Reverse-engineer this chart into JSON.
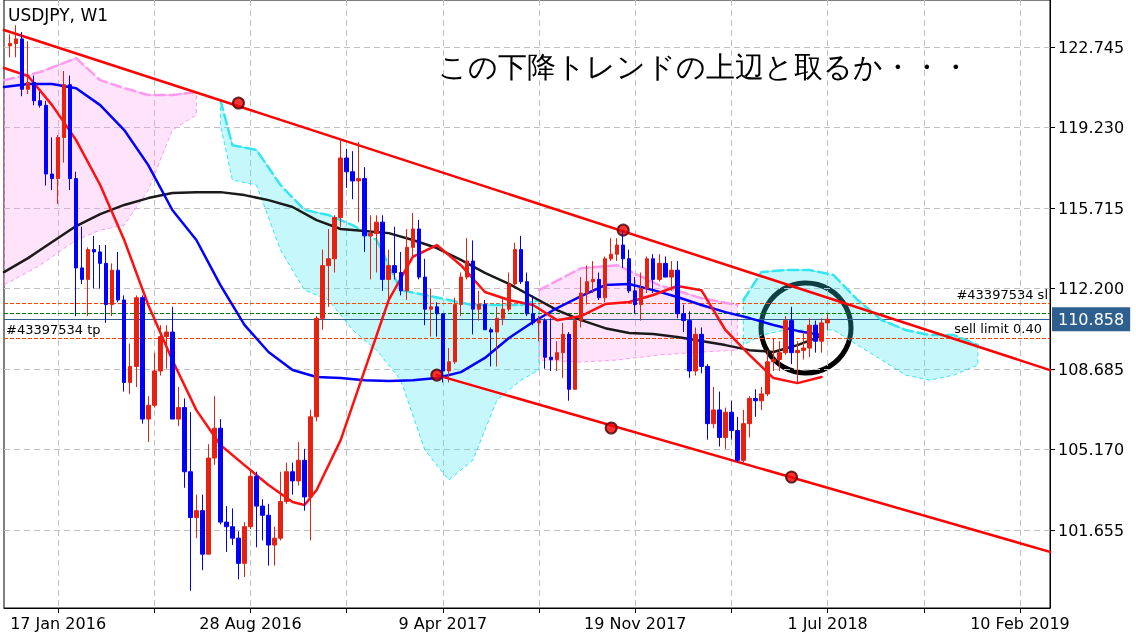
{
  "chart_data": {
    "type": "candlestick",
    "title": "USDJPY, W1",
    "annotations": [
      "この下降トレンドの上辺と取るか・・・"
    ],
    "xlim": [
      "2015-11-15",
      "2019-03-17"
    ],
    "xticks": [
      {
        "value": "2016-01-17",
        "label": "17 Jan 2016"
      },
      {
        "value": "2016-05-08",
        "label": null
      },
      {
        "value": "2016-08-28",
        "label": "28 Aug 2016"
      },
      {
        "value": "2016-12-18",
        "label": null
      },
      {
        "value": "2017-04-09",
        "label": "9 Apr 2017"
      },
      {
        "value": "2017-07-30",
        "label": null
      },
      {
        "value": "2017-11-19",
        "label": "19 Nov 2017"
      },
      {
        "value": "2018-03-11",
        "label": null
      },
      {
        "value": "2018-07-01",
        "label": "1 Jul 2018"
      },
      {
        "value": "2018-10-21",
        "label": null
      },
      {
        "value": "2019-02-10",
        "label": "10 Feb 2019"
      }
    ],
    "ylim": [
      98.25,
      124.8
    ],
    "yticks": [
      {
        "value": 101.655,
        "label": "101.655"
      },
      {
        "value": 105.17,
        "label": "105.170"
      },
      {
        "value": 108.685,
        "label": "108.685"
      },
      {
        "value": 112.2,
        "label": "112.200"
      },
      {
        "value": 115.715,
        "label": "115.715"
      },
      {
        "value": 119.23,
        "label": "119.230"
      },
      {
        "value": 122.745,
        "label": "122.745"
      }
    ],
    "grid": true,
    "ref_lines": [
      {
        "axis": "y",
        "value": 111.55,
        "label": "#43397534 sl",
        "color": "#ff4500",
        "line_style": "dashed"
      },
      {
        "axis": "y",
        "value": 111.1,
        "label": "sell limit 0.40",
        "color": "#008000",
        "line_style": "dashed"
      },
      {
        "axis": "y",
        "value": 110.858,
        "label": "110.858",
        "color": "#2f5f8f",
        "line_style": "solid"
      },
      {
        "axis": "y",
        "value": 110.05,
        "label": "#43397534 tp",
        "color": "#ff4500",
        "line_style": "dashed"
      }
    ],
    "series": [
      {
        "type": "line",
        "line_style": "dashed",
        "color": "#ff99ee",
        "x": [
          "2015-11-15",
          "2015-12-27",
          "2016-02-07",
          "2016-03-06",
          "2016-04-03",
          "2016-05-01",
          "2016-05-29",
          "2016-06-26",
          "2016-07-24",
          "2017-07-30",
          "2017-09-17",
          "2017-10-29",
          "2017-12-17",
          "2018-02-04",
          "2018-03-18"
        ],
        "values": [
          121.3,
          121.65,
          122.26,
          121.3,
          120.95,
          120.65,
          120.65,
          120.78,
          null,
          112.13,
          113.09,
          113.22,
          112.35,
          111.78,
          111.48
        ],
        "upper": [
          121.3,
          121.65,
          122.26,
          121.3,
          120.95,
          120.65,
          120.65,
          120.78,
          null,
          112.13,
          113.09,
          113.22,
          112.35,
          111.78,
          111.48
        ],
        "lower": [
          112.35,
          113.22,
          114.32,
          114.75,
          114.97,
          116.5,
          119.12,
          119.78,
          null,
          109.08,
          108.99,
          109.08,
          109.3,
          109.43,
          109.51
        ]
      },
      {
        "type": "line",
        "line_style": "dashed",
        "color": "#33e6f0",
        "x": [
          "2016-07-24",
          "2016-08-07",
          "2016-09-04",
          "2016-10-02",
          "2016-10-30",
          "2016-11-27",
          "2016-12-25",
          "2017-01-22",
          "2017-02-19",
          "2017-03-19",
          "2017-04-16",
          "2017-05-14",
          "2017-06-11",
          "2017-07-09",
          "2017-07-30",
          "2017-12-31",
          "2018-03-25",
          "2018-04-15",
          "2018-05-13",
          "2018-06-10",
          "2018-07-08",
          "2018-08-05",
          "2018-09-02",
          "2018-09-30",
          "2018-10-28",
          "2018-11-25",
          "2018-12-23"
        ],
        "values": [
          120.43,
          118.46,
          118.25,
          116.72,
          115.63,
          115.41,
          114.97,
          114.32,
          112.13,
          111.92,
          111.7,
          111.48,
          111.48,
          111.48,
          111.7,
          null,
          111.7,
          112.92,
          113.01,
          113.01,
          112.79,
          111.7,
          110.82,
          110.39,
          110.17,
          110.17,
          109.73
        ],
        "upper": [
          120.43,
          118.46,
          118.25,
          116.72,
          115.63,
          115.41,
          114.97,
          114.32,
          112.13,
          111.92,
          111.7,
          111.48,
          111.48,
          111.48,
          111.7,
          null,
          111.7,
          112.92,
          113.01,
          113.01,
          112.79,
          111.7,
          110.82,
          110.39,
          110.17,
          110.17,
          109.73
        ],
        "lower": [
          119.34,
          116.94,
          116.72,
          113.88,
          112.13,
          111.7,
          110.39,
          109.51,
          108.2,
          105.15,
          103.84,
          104.71,
          107.33,
          108.2,
          108.64,
          null,
          109.73,
          110.17,
          110.39,
          110.39,
          110.39,
          109.73,
          109.08,
          108.42,
          108.2,
          108.42,
          108.86
        ]
      },
      {
        "type": "line",
        "color": "#1a1a1a",
        "x": [
          "2015-11-15",
          "2015-12-13",
          "2016-01-10",
          "2016-02-07",
          "2016-03-06",
          "2016-04-03",
          "2016-05-01",
          "2016-05-29",
          "2016-06-26",
          "2016-07-24",
          "2016-08-21",
          "2016-09-18",
          "2016-10-16",
          "2016-11-13",
          "2016-12-11",
          "2017-01-08",
          "2017-02-05",
          "2017-03-05",
          "2017-04-02",
          "2017-04-30",
          "2017-05-28",
          "2017-06-25",
          "2017-07-23",
          "2017-08-20",
          "2017-09-17",
          "2017-10-15",
          "2017-11-12",
          "2017-12-10",
          "2018-01-07",
          "2018-02-04",
          "2018-03-04",
          "2018-04-01",
          "2018-04-29",
          "2018-05-27",
          "2018-06-24"
        ],
        "values": [
          112.92,
          113.53,
          114.23,
          114.93,
          115.45,
          115.85,
          116.15,
          116.37,
          116.41,
          116.41,
          116.28,
          116.06,
          115.76,
          115.19,
          114.8,
          114.71,
          114.62,
          114.32,
          113.97,
          113.45,
          112.88,
          112.4,
          111.83,
          111.26,
          110.82,
          110.47,
          110.26,
          110.21,
          110.08,
          109.91,
          109.73,
          109.51,
          109.43,
          109.73,
          110.13
        ]
      },
      {
        "type": "line",
        "color": "#0000ff",
        "x": [
          "2015-11-15",
          "2015-12-13",
          "2016-01-10",
          "2016-02-07",
          "2016-03-06",
          "2016-04-03",
          "2016-05-01",
          "2016-05-29",
          "2016-06-26",
          "2016-07-24",
          "2016-08-21",
          "2016-09-18",
          "2016-10-16",
          "2016-11-13",
          "2016-12-11",
          "2017-01-08",
          "2017-02-05",
          "2017-03-05",
          "2017-04-02",
          "2017-04-30",
          "2017-05-28",
          "2017-06-25",
          "2017-07-23",
          "2017-08-20",
          "2017-09-17",
          "2017-10-15",
          "2017-11-12",
          "2017-12-10",
          "2018-01-07",
          "2018-02-04",
          "2018-03-04",
          "2018-04-01",
          "2018-04-29",
          "2018-05-27",
          "2018-06-24"
        ],
        "values": [
          121.0,
          121.13,
          121.13,
          120.95,
          120.21,
          119.12,
          117.59,
          115.63,
          114.32,
          112.35,
          110.61,
          109.43,
          108.64,
          108.34,
          108.29,
          108.2,
          108.16,
          108.2,
          108.29,
          108.55,
          109.17,
          110.04,
          110.74,
          111.35,
          111.87,
          112.35,
          112.4,
          112.13,
          111.83,
          111.48,
          111.17,
          110.91,
          110.61,
          110.35,
          110.17
        ]
      },
      {
        "type": "line",
        "color": "#ff1010",
        "x": [
          "2015-11-15",
          "2015-12-13",
          "2016-01-10",
          "2016-02-07",
          "2016-03-06",
          "2016-04-03",
          "2016-05-01",
          "2016-05-29",
          "2016-06-26",
          "2016-07-24",
          "2016-08-21",
          "2016-09-18",
          "2016-10-16",
          "2016-10-30",
          "2016-11-13",
          "2016-12-11",
          "2017-01-08",
          "2017-02-05",
          "2017-03-05",
          "2017-04-02",
          "2017-04-30",
          "2017-05-28",
          "2017-06-25",
          "2017-07-23",
          "2017-08-20",
          "2017-09-17",
          "2017-10-15",
          "2017-11-12",
          "2017-12-10",
          "2018-01-07",
          "2018-02-04",
          "2018-03-04",
          "2018-04-01",
          "2018-04-29",
          "2018-05-27",
          "2018-06-24"
        ],
        "values": [
          121.83,
          121.48,
          120.21,
          118.68,
          116.72,
          114.32,
          111.48,
          109.08,
          106.89,
          105.37,
          104.49,
          103.62,
          102.88,
          102.75,
          103.4,
          105.58,
          108.64,
          111.7,
          113.58,
          114.1,
          113.22,
          112.05,
          111.7,
          111.48,
          110.82,
          111.0,
          111.52,
          111.61,
          111.92,
          112.31,
          112.13,
          110.39,
          109.3,
          108.29,
          108.07,
          108.34
        ]
      },
      {
        "type": "line",
        "color": "#ff0000",
        "x": [
          "2015-11-15",
          "2019-03-17"
        ],
        "values": [
          123.49,
          108.64
        ]
      },
      {
        "type": "line",
        "color": "#ff0000",
        "x": [
          "2017-04-02",
          "2019-03-17"
        ],
        "values": [
          108.42,
          100.7
        ]
      },
      {
        "type": "scatter",
        "color": "#ff0000",
        "marker": "circle",
        "x": [
          "2016-08-14",
          "2017-11-05",
          "2017-04-02",
          "2017-10-22",
          "2018-05-20"
        ],
        "values": [
          120.3,
          114.75,
          108.42,
          106.11,
          103.97
        ]
      },
      {
        "type": "candlestick",
        "x": [
          "2015-11-22",
          "2015-11-29",
          "2015-12-06",
          "2015-12-13",
          "2015-12-20",
          "2015-12-27",
          "2016-01-03",
          "2016-01-10",
          "2016-01-17",
          "2016-01-24",
          "2016-01-31",
          "2016-02-07",
          "2016-02-14",
          "2016-02-21",
          "2016-02-28",
          "2016-03-06",
          "2016-03-13",
          "2016-03-20",
          "2016-03-27",
          "2016-04-03",
          "2016-04-10",
          "2016-04-17",
          "2016-04-24",
          "2016-05-01",
          "2016-05-08",
          "2016-05-15",
          "2016-05-22",
          "2016-05-29",
          "2016-06-05",
          "2016-06-12",
          "2016-06-19",
          "2016-06-26",
          "2016-07-03",
          "2016-07-10",
          "2016-07-17",
          "2016-07-24",
          "2016-07-31",
          "2016-08-07",
          "2016-08-14",
          "2016-08-21",
          "2016-08-28",
          "2016-09-04",
          "2016-09-11",
          "2016-09-18",
          "2016-09-25",
          "2016-10-02",
          "2016-10-09",
          "2016-10-16",
          "2016-10-23",
          "2016-10-30",
          "2016-11-06",
          "2016-11-13",
          "2016-11-20",
          "2016-11-27",
          "2016-12-04",
          "2016-12-11",
          "2016-12-18",
          "2016-12-25",
          "2017-01-01",
          "2017-01-08",
          "2017-01-15",
          "2017-01-22",
          "2017-01-29",
          "2017-02-05",
          "2017-02-12",
          "2017-02-19",
          "2017-02-26",
          "2017-03-05",
          "2017-03-12",
          "2017-03-19",
          "2017-03-26",
          "2017-04-02",
          "2017-04-09",
          "2017-04-16",
          "2017-04-23",
          "2017-04-30",
          "2017-05-07",
          "2017-05-14",
          "2017-05-21",
          "2017-05-28",
          "2017-06-04",
          "2017-06-11",
          "2017-06-18",
          "2017-06-25",
          "2017-07-02",
          "2017-07-09",
          "2017-07-16",
          "2017-07-23",
          "2017-07-30",
          "2017-08-06",
          "2017-08-13",
          "2017-08-20",
          "2017-08-27",
          "2017-09-03",
          "2017-09-10",
          "2017-09-17",
          "2017-09-24",
          "2017-10-01",
          "2017-10-08",
          "2017-10-15",
          "2017-10-22",
          "2017-10-29",
          "2017-11-05",
          "2017-11-12",
          "2017-11-19",
          "2017-11-26",
          "2017-12-03",
          "2017-12-10",
          "2017-12-17",
          "2017-12-24",
          "2017-12-31",
          "2018-01-07",
          "2018-01-14",
          "2018-01-21",
          "2018-01-28",
          "2018-02-04",
          "2018-02-11",
          "2018-02-18",
          "2018-02-25",
          "2018-03-04",
          "2018-03-11",
          "2018-03-18",
          "2018-03-25",
          "2018-04-01",
          "2018-04-08",
          "2018-04-15",
          "2018-04-22",
          "2018-04-29",
          "2018-05-06",
          "2018-05-13",
          "2018-05-20",
          "2018-05-27",
          "2018-06-03",
          "2018-06-10",
          "2018-06-17",
          "2018-06-24",
          "2018-07-01"
        ],
        "ohlc": [
          [
            122.8,
            123.3,
            122.3,
            122.9
          ],
          [
            122.9,
            123.7,
            122.3,
            123.1
          ],
          [
            123.1,
            123.4,
            120.6,
            120.9
          ],
          [
            120.9,
            123.0,
            120.7,
            121.2
          ],
          [
            121.2,
            121.5,
            120.2,
            120.4
          ],
          [
            120.4,
            120.8,
            120.1,
            120.2
          ],
          [
            120.2,
            120.4,
            116.7,
            117.2
          ],
          [
            117.2,
            118.8,
            116.5,
            117.0
          ],
          [
            117.0,
            118.9,
            115.9,
            118.8
          ],
          [
            118.8,
            121.7,
            117.7,
            121.1
          ],
          [
            121.1,
            121.5,
            116.5,
            117.0
          ],
          [
            117.0,
            117.3,
            110.99,
            113.1
          ],
          [
            113.1,
            114.9,
            112.4,
            112.6
          ],
          [
            112.6,
            114.0,
            111.0,
            113.9
          ],
          [
            113.9,
            114.5,
            112.2,
            113.8
          ],
          [
            113.8,
            114.1,
            112.2,
            113.3
          ],
          [
            113.3,
            114.1,
            110.7,
            111.5
          ],
          [
            111.5,
            113.3,
            111.0,
            113.0
          ],
          [
            113.0,
            113.8,
            111.6,
            111.7
          ],
          [
            111.7,
            111.9,
            107.7,
            108.1
          ],
          [
            108.1,
            109.8,
            107.6,
            108.8
          ],
          [
            108.8,
            111.9,
            107.9,
            111.8
          ],
          [
            111.8,
            111.9,
            106.3,
            106.5
          ],
          [
            106.5,
            107.5,
            105.5,
            107.1
          ],
          [
            107.1,
            109.4,
            107.0,
            108.6
          ],
          [
            108.6,
            110.6,
            108.4,
            110.1
          ],
          [
            110.1,
            110.6,
            108.7,
            110.3
          ],
          [
            110.3,
            111.4,
            106.5,
            106.5
          ],
          [
            106.5,
            107.9,
            106.2,
            107.0
          ],
          [
            107.0,
            107.4,
            103.5,
            104.2
          ],
          [
            104.2,
            106.8,
            99.0,
            102.2
          ],
          [
            102.2,
            103.2,
            101.3,
            102.5
          ],
          [
            102.5,
            103.2,
            99.9,
            100.6
          ],
          [
            100.6,
            105.4,
            100.6,
            104.8
          ],
          [
            104.8,
            107.5,
            104.5,
            106.1
          ],
          [
            106.1,
            106.5,
            101.9,
            102.0
          ],
          [
            102.0,
            102.7,
            100.7,
            101.8
          ],
          [
            101.8,
            102.6,
            101.0,
            101.3
          ],
          [
            101.3,
            101.6,
            99.5,
            100.2
          ],
          [
            100.2,
            102.0,
            99.6,
            101.8
          ],
          [
            101.8,
            104.3,
            101.7,
            104.0
          ],
          [
            104.0,
            104.2,
            100.9,
            102.7
          ],
          [
            102.7,
            103.0,
            101.2,
            102.3
          ],
          [
            102.3,
            102.8,
            100.1,
            101.0
          ],
          [
            101.0,
            101.8,
            100.1,
            101.3
          ],
          [
            101.3,
            104.2,
            101.2,
            102.9
          ],
          [
            102.9,
            104.6,
            102.8,
            104.2
          ],
          [
            104.2,
            104.6,
            103.2,
            103.8
          ],
          [
            103.8,
            105.5,
            103.6,
            104.7
          ],
          [
            104.7,
            105.2,
            102.5,
            103.1
          ],
          [
            103.1,
            106.9,
            101.2,
            106.6
          ],
          [
            106.6,
            111.0,
            106.4,
            110.9
          ],
          [
            110.9,
            113.9,
            110.4,
            113.2
          ],
          [
            113.2,
            114.8,
            111.4,
            113.5
          ],
          [
            113.5,
            115.4,
            112.9,
            115.3
          ],
          [
            115.3,
            118.7,
            114.9,
            117.9
          ],
          [
            117.9,
            118.3,
            116.6,
            117.3
          ],
          [
            117.3,
            118.2,
            116.1,
            116.9
          ],
          [
            116.9,
            118.6,
            115.1,
            117.0
          ],
          [
            117.0,
            117.5,
            113.8,
            114.5
          ],
          [
            114.5,
            115.4,
            112.6,
            114.6
          ],
          [
            114.6,
            115.4,
            112.9,
            115.1
          ],
          [
            115.1,
            115.4,
            112.1,
            112.6
          ],
          [
            112.6,
            113.9,
            111.6,
            113.2
          ],
          [
            113.2,
            114.9,
            112.6,
            112.9
          ],
          [
            112.9,
            113.8,
            111.9,
            112.1
          ],
          [
            112.1,
            114.8,
            111.7,
            114.0
          ],
          [
            114.0,
            115.5,
            113.5,
            114.8
          ],
          [
            114.8,
            115.2,
            112.6,
            112.7
          ],
          [
            112.7,
            113.5,
            110.6,
            111.3
          ],
          [
            111.3,
            112.2,
            110.1,
            111.4
          ],
          [
            111.4,
            111.6,
            110.1,
            111.1
          ],
          [
            111.1,
            111.1,
            108.1,
            108.6
          ],
          [
            108.6,
            109.6,
            108.1,
            109.0
          ],
          [
            109.0,
            111.8,
            108.9,
            111.5
          ],
          [
            111.5,
            112.9,
            111.0,
            112.7
          ],
          [
            112.7,
            114.4,
            112.6,
            113.4
          ],
          [
            113.4,
            114.3,
            110.2,
            111.3
          ],
          [
            111.3,
            112.1,
            110.8,
            111.5
          ],
          [
            111.5,
            111.7,
            110.4,
            110.4
          ],
          [
            110.4,
            110.5,
            108.8,
            110.3
          ],
          [
            110.3,
            111.4,
            108.8,
            110.9
          ],
          [
            110.9,
            111.8,
            110.6,
            111.3
          ],
          [
            111.3,
            112.9,
            111.2,
            112.4
          ],
          [
            112.4,
            114.2,
            112.3,
            113.9
          ],
          [
            113.9,
            114.5,
            112.4,
            112.5
          ],
          [
            112.5,
            112.9,
            111.0,
            111.1
          ],
          [
            111.1,
            111.9,
            110.6,
            110.7
          ],
          [
            110.7,
            111.0,
            109.9,
            110.8
          ],
          [
            110.8,
            110.9,
            108.7,
            109.2
          ],
          [
            109.2,
            110.9,
            108.6,
            109.1
          ],
          [
            109.1,
            109.9,
            108.6,
            109.4
          ],
          [
            109.4,
            110.7,
            108.3,
            110.2
          ],
          [
            110.2,
            110.3,
            107.3,
            107.8
          ],
          [
            107.8,
            111.0,
            107.8,
            110.8
          ],
          [
            110.8,
            112.7,
            110.5,
            112.0
          ],
          [
            112.0,
            113.2,
            111.5,
            112.5
          ],
          [
            112.5,
            113.4,
            112.0,
            112.6
          ],
          [
            112.6,
            112.9,
            111.7,
            111.8
          ],
          [
            111.8,
            113.6,
            111.6,
            113.5
          ],
          [
            113.5,
            114.4,
            113.4,
            113.7
          ],
          [
            113.7,
            114.4,
            113.4,
            114.1
          ],
          [
            114.1,
            114.7,
            113.1,
            113.5
          ],
          [
            113.5,
            113.9,
            112.0,
            112.1
          ],
          [
            112.1,
            112.7,
            111.1,
            111.5
          ],
          [
            111.5,
            112.9,
            110.8,
            112.2
          ],
          [
            112.2,
            113.6,
            112.0,
            113.5
          ],
          [
            113.5,
            113.7,
            112.0,
            112.6
          ],
          [
            112.6,
            113.7,
            112.5,
            113.3
          ],
          [
            113.3,
            113.6,
            112.7,
            112.7
          ],
          [
            112.7,
            113.4,
            112.1,
            113.0
          ],
          [
            113.0,
            113.4,
            110.9,
            111.1
          ],
          [
            111.1,
            111.5,
            110.3,
            110.8
          ],
          [
            110.8,
            111.2,
            108.3,
            108.6
          ],
          [
            108.6,
            110.5,
            108.4,
            110.2
          ],
          [
            110.2,
            110.5,
            108.5,
            108.8
          ],
          [
            108.8,
            108.9,
            105.6,
            106.3
          ],
          [
            106.3,
            107.9,
            106.1,
            106.9
          ],
          [
            106.9,
            107.7,
            105.3,
            105.7
          ],
          [
            105.7,
            107.0,
            105.2,
            106.8
          ],
          [
            106.8,
            107.3,
            105.6,
            106.0
          ],
          [
            106.0,
            106.6,
            104.6,
            104.7
          ],
          [
            104.7,
            106.9,
            104.6,
            106.3
          ],
          [
            106.3,
            107.5,
            105.7,
            107.4
          ],
          [
            107.4,
            107.8,
            106.6,
            107.3
          ],
          [
            107.3,
            107.9,
            106.9,
            107.6
          ],
          [
            107.6,
            109.5,
            107.5,
            109.0
          ],
          [
            109.0,
            110.0,
            108.6,
            109.1
          ],
          [
            109.1,
            109.9,
            108.6,
            109.4
          ],
          [
            109.4,
            111.0,
            109.3,
            110.8
          ],
          [
            110.8,
            111.4,
            108.9,
            109.4
          ],
          [
            109.4,
            109.9,
            108.1,
            109.5
          ],
          [
            109.5,
            110.3,
            109.1,
            109.6
          ],
          [
            109.6,
            110.9,
            109.2,
            110.6
          ],
          [
            110.6,
            110.8,
            109.4,
            109.9
          ],
          [
            109.9,
            110.9,
            109.4,
            110.7
          ],
          [
            110.7,
            111.1,
            110.4,
            110.858
          ]
        ],
        "colors": [
          "#e8200f",
          "#e8200f",
          "#0000ff",
          "#e8200f",
          "#0000ff",
          "#0000ff",
          "#0000ff",
          "#0000ff",
          "#e8200f",
          "#e8200f",
          "#0000ff",
          "#0000ff",
          "#0000ff",
          "#e8200f",
          "#0000ff",
          "#0000ff",
          "#0000ff",
          "#e8200f",
          "#0000ff",
          "#0000ff",
          "#e8200f",
          "#e8200f",
          "#0000ff",
          "#e8200f",
          "#e8200f",
          "#e8200f",
          "#e8200f",
          "#0000ff",
          "#e8200f",
          "#0000ff",
          "#0000ff",
          "#e8200f",
          "#0000ff",
          "#e8200f",
          "#e8200f",
          "#0000ff",
          "#0000ff",
          "#0000ff",
          "#0000ff",
          "#e8200f",
          "#e8200f",
          "#0000ff",
          "#0000ff",
          "#0000ff",
          "#e8200f",
          "#e8200f",
          "#e8200f",
          "#0000ff",
          "#e8200f",
          "#0000ff",
          "#e8200f",
          "#e8200f",
          "#e8200f",
          "#e8200f",
          "#e8200f",
          "#e8200f",
          "#0000ff",
          "#0000ff",
          "#e8200f",
          "#0000ff",
          "#e8200f",
          "#e8200f",
          "#0000ff",
          "#e8200f",
          "#0000ff",
          "#0000ff",
          "#e8200f",
          "#e8200f",
          "#0000ff",
          "#0000ff",
          "#e8200f",
          "#0000ff",
          "#0000ff",
          "#e8200f",
          "#e8200f",
          "#e8200f",
          "#e8200f",
          "#0000ff",
          "#e8200f",
          "#0000ff",
          "#0000ff",
          "#e8200f",
          "#e8200f",
          "#e8200f",
          "#e8200f",
          "#0000ff",
          "#0000ff",
          "#0000ff",
          "#e8200f",
          "#0000ff",
          "#0000ff",
          "#e8200f",
          "#e8200f",
          "#0000ff",
          "#e8200f",
          "#e8200f",
          "#e8200f",
          "#e8200f",
          "#0000ff",
          "#e8200f",
          "#e8200f",
          "#e8200f",
          "#0000ff",
          "#0000ff",
          "#0000ff",
          "#e8200f",
          "#e8200f",
          "#0000ff",
          "#e8200f",
          "#0000ff",
          "#e8200f",
          "#0000ff",
          "#0000ff",
          "#0000ff",
          "#e8200f",
          "#0000ff",
          "#0000ff",
          "#e8200f",
          "#0000ff",
          "#e8200f",
          "#0000ff",
          "#0000ff",
          "#e8200f",
          "#e8200f",
          "#0000ff",
          "#e8200f",
          "#e8200f",
          "#e8200f",
          "#e8200f",
          "#e8200f",
          "#0000ff",
          "#e8200f",
          "#e8200f",
          "#e8200f",
          "#0000ff",
          "#e8200f",
          "#e8200f"
        ]
      }
    ]
  }
}
